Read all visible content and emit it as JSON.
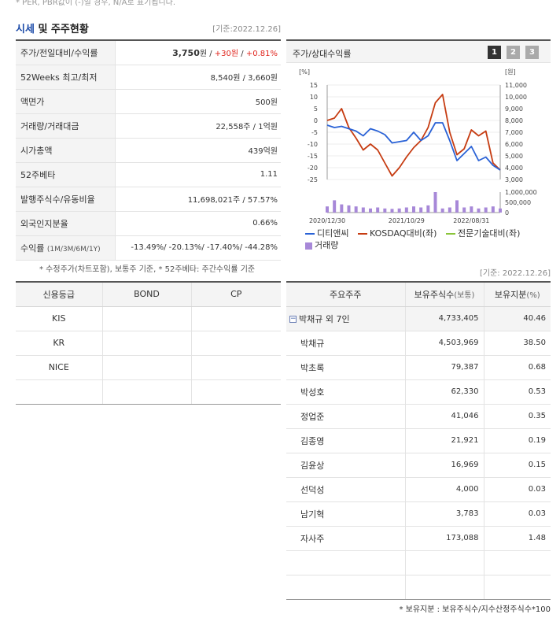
{
  "top_note": "* PER, PBR값이 (-)일 경우, N/A로 표기됩니다.",
  "header": {
    "title_accent": "시세",
    "title_rest": " 및 주주현황",
    "std_date": "[기준:2022.12.26]"
  },
  "info": {
    "price_label": "주가/전일대비/수익률",
    "price_value": "3,750",
    "price_unit": "원",
    "price_sep1": " / ",
    "change_value": "+30원",
    "price_sep2": " / ",
    "change_pct": "+0.81%",
    "w52_label": "52Weeks 최고/최저",
    "w52_value": "8,540원 / 3,660원",
    "face_label": "액면가",
    "face_value": "500원",
    "volume_label": "거래량/거래대금",
    "volume_value": "22,558주 / 1억원",
    "mcap_label": "시가총액",
    "mcap_value": "439억원",
    "beta_label": "52주베타",
    "beta_value": "1.11",
    "shares_label": "발행주식수/유동비율",
    "shares_value": "11,698,021주 / 57.57%",
    "foreign_label": "외국인지분율",
    "foreign_value": "0.66%",
    "return_label": "수익률",
    "return_sub": "(1M/3M/6M/1Y)",
    "return_value": "-13.49%/ -20.13%/ -17.40%/ -44.28%",
    "footnote": "* 수정주가(차트포함), 보통주 기준, * 52주베타: 주간수익률 기준"
  },
  "chart_panel": {
    "title": "주가/상대수익률",
    "pages": [
      "1",
      "2",
      "3"
    ],
    "std_date": "[기준: 2022.12.26]"
  },
  "chart_data": {
    "type": "line",
    "left_axis_unit": "[%]",
    "right_axis_unit": "[원]",
    "left_ticks": [
      "15",
      "10",
      "5",
      "0",
      "-5",
      "-10",
      "-15",
      "-20",
      "-25"
    ],
    "right_ticks": [
      "11,000",
      "10,000",
      "9,000",
      "8,000",
      "7,000",
      "6,000",
      "5,000",
      "4,000",
      "3,000"
    ],
    "volume_ticks": [
      "1,000,000",
      "500,000",
      "0"
    ],
    "x_labels": [
      "2020/12/30",
      "2021/10/29",
      "2022/08/31"
    ],
    "ylim_left": [
      -25,
      15
    ],
    "ylim_right": [
      3000,
      11000
    ],
    "series": [
      {
        "name": "디티앤씨",
        "color": "#2a62d6",
        "values": [
          -2,
          -3,
          -2.5,
          -3.5,
          -4.5,
          -6.5,
          -3.5,
          -4.5,
          -6,
          -9.5,
          -9,
          -8.5,
          -5,
          -8.5,
          -6.5,
          -1,
          -1,
          -8.5,
          -17,
          -14,
          -11,
          -17,
          -15.5,
          -19,
          -21
        ]
      },
      {
        "name": "KOSDAQ대비(좌)",
        "color": "#c63c12",
        "values": [
          0,
          1,
          5,
          -3,
          -7.5,
          -12.5,
          -10,
          -12.5,
          -18,
          -23.5,
          -20,
          -15.5,
          -11.5,
          -8.5,
          -3,
          7.5,
          11,
          -5,
          -14.5,
          -12,
          -4,
          -6.5,
          -4.5,
          -18,
          -21
        ]
      },
      {
        "name": "전문기술대비(좌)",
        "color": "#8ac43a",
        "values": []
      }
    ],
    "volume_name": "거래량",
    "volume_color": "#a788d8",
    "volume": [
      30,
      60,
      40,
      35,
      30,
      25,
      20,
      25,
      20,
      18,
      20,
      25,
      30,
      25,
      35,
      100,
      20,
      25,
      60,
      25,
      30,
      20,
      25,
      30,
      20
    ]
  },
  "credit": {
    "headers": [
      "신용등급",
      "BOND",
      "CP"
    ],
    "rows": [
      [
        "KIS",
        "",
        ""
      ],
      [
        "KR",
        "",
        ""
      ],
      [
        "NICE",
        "",
        ""
      ],
      [
        "",
        "",
        ""
      ]
    ]
  },
  "holders": {
    "headers": [
      "주요주주",
      "보유주식수",
      "(보통)",
      "보유지분",
      "(%)"
    ],
    "group": {
      "name": "박채규 외 7인",
      "shares": "4,733,405",
      "pct": "40.46"
    },
    "rows": [
      {
        "name": "박채규",
        "shares": "4,503,969",
        "pct": "38.50"
      },
      {
        "name": "박초록",
        "shares": "79,387",
        "pct": "0.68"
      },
      {
        "name": "박성호",
        "shares": "62,330",
        "pct": "0.53"
      },
      {
        "name": "정업준",
        "shares": "41,046",
        "pct": "0.35"
      },
      {
        "name": "김종영",
        "shares": "21,921",
        "pct": "0.19"
      },
      {
        "name": "김윤상",
        "shares": "16,969",
        "pct": "0.15"
      },
      {
        "name": "선덕성",
        "shares": "4,000",
        "pct": "0.03"
      },
      {
        "name": "남기혁",
        "shares": "3,783",
        "pct": "0.03"
      },
      {
        "name": "자사주",
        "shares": "173,088",
        "pct": "1.48"
      },
      {
        "name": "",
        "shares": "",
        "pct": ""
      },
      {
        "name": "",
        "shares": "",
        "pct": ""
      }
    ],
    "footnote": "* 보유지분 : 보유주식수/지수산정주식수*100"
  }
}
